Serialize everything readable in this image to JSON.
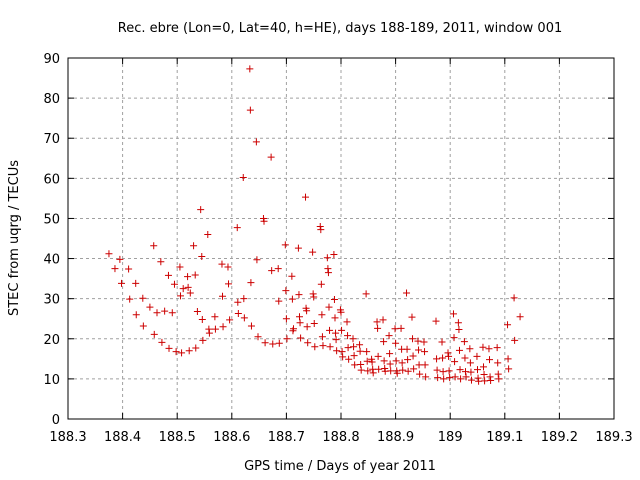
{
  "chart_data": {
    "type": "scatter",
    "title": "Rec. ebre (Lon=0, Lat=40, h=HE), days 188-189, 2011, window 001",
    "xlabel": "GPS time / Days of year 2011",
    "ylabel": "STEC from uqrg / TECUs",
    "xlim": [
      188.3,
      189.3
    ],
    "ylim": [
      0,
      90
    ],
    "xticks": [
      "188.3",
      "188.4",
      "188.5",
      "188.6",
      "188.7",
      "188.8",
      "188.9",
      "189",
      "189.1",
      "189.2",
      "189.3"
    ],
    "yticks": [
      "0",
      "10",
      "20",
      "30",
      "40",
      "50",
      "60",
      "70",
      "80",
      "90"
    ],
    "grid": true,
    "marker": "+",
    "marker_color": "#cc0000",
    "points": [
      [
        188.375,
        41.2
      ],
      [
        188.386,
        37.5
      ],
      [
        188.395,
        39.8
      ],
      [
        188.398,
        33.8
      ],
      [
        188.411,
        37.4
      ],
      [
        188.413,
        29.9
      ],
      [
        188.424,
        33.8
      ],
      [
        188.425,
        26.0
      ],
      [
        188.437,
        30.1
      ],
      [
        188.438,
        23.2
      ],
      [
        188.45,
        27.9
      ],
      [
        188.457,
        43.2
      ],
      [
        188.458,
        21.1
      ],
      [
        188.463,
        26.5
      ],
      [
        188.47,
        39.2
      ],
      [
        188.472,
        19.1
      ],
      [
        188.477,
        26.9
      ],
      [
        188.484,
        35.8
      ],
      [
        188.485,
        17.6
      ],
      [
        188.491,
        26.5
      ],
      [
        188.495,
        33.6
      ],
      [
        188.498,
        16.8
      ],
      [
        188.505,
        37.9
      ],
      [
        188.506,
        30.7
      ],
      [
        188.508,
        16.5
      ],
      [
        188.511,
        32.5
      ],
      [
        188.519,
        35.5
      ],
      [
        188.52,
        32.8
      ],
      [
        188.522,
        17.0
      ],
      [
        188.524,
        31.4
      ],
      [
        188.53,
        43.2
      ],
      [
        188.533,
        35.9
      ],
      [
        188.534,
        17.7
      ],
      [
        188.537,
        26.8
      ],
      [
        188.543,
        52.2
      ],
      [
        188.545,
        40.5
      ],
      [
        188.546,
        24.8
      ],
      [
        188.547,
        19.6
      ],
      [
        188.556,
        46.0
      ],
      [
        188.558,
        22.4
      ],
      [
        188.559,
        21.4
      ],
      [
        188.569,
        25.5
      ],
      [
        188.57,
        22.4
      ],
      [
        188.582,
        38.6
      ],
      [
        188.583,
        30.6
      ],
      [
        188.584,
        23.0
      ],
      [
        188.593,
        37.9
      ],
      [
        188.594,
        33.7
      ],
      [
        188.596,
        24.7
      ],
      [
        188.61,
        47.7
      ],
      [
        188.611,
        29.1
      ],
      [
        188.612,
        26.3
      ],
      [
        188.621,
        60.2
      ],
      [
        188.622,
        30.0
      ],
      [
        188.623,
        25.2
      ],
      [
        188.633,
        87.3
      ],
      [
        188.634,
        77.0
      ],
      [
        188.635,
        34.0
      ],
      [
        188.636,
        23.2
      ],
      [
        188.645,
        69.1
      ],
      [
        188.646,
        39.7
      ],
      [
        188.648,
        20.5
      ],
      [
        188.658,
        50.0
      ],
      [
        188.659,
        49.3
      ],
      [
        188.661,
        19.0
      ],
      [
        188.672,
        65.3
      ],
      [
        188.673,
        37.0
      ],
      [
        188.675,
        18.7
      ],
      [
        188.685,
        37.5
      ],
      [
        188.686,
        29.4
      ],
      [
        188.687,
        18.9
      ],
      [
        188.698,
        43.4
      ],
      [
        188.699,
        32.0
      ],
      [
        188.7,
        25.0
      ],
      [
        188.701,
        20.0
      ],
      [
        188.71,
        35.6
      ],
      [
        188.711,
        29.9
      ],
      [
        188.712,
        22.0
      ],
      [
        188.713,
        22.5
      ],
      [
        188.722,
        42.6
      ],
      [
        188.723,
        31.0
      ],
      [
        188.724,
        25.5
      ],
      [
        188.725,
        24.0
      ],
      [
        188.726,
        20.2
      ],
      [
        188.735,
        55.3
      ],
      [
        188.736,
        27.6
      ],
      [
        188.737,
        27.0
      ],
      [
        188.738,
        23.0
      ],
      [
        188.739,
        19.0
      ],
      [
        188.748,
        41.6
      ],
      [
        188.749,
        31.2
      ],
      [
        188.75,
        30.4
      ],
      [
        188.751,
        23.8
      ],
      [
        188.752,
        18.0
      ],
      [
        188.762,
        48.0
      ],
      [
        188.763,
        47.2
      ],
      [
        188.764,
        33.6
      ],
      [
        188.765,
        26.0
      ],
      [
        188.766,
        20.5
      ],
      [
        188.767,
        18.3
      ],
      [
        188.775,
        40.2
      ],
      [
        188.776,
        37.5
      ],
      [
        188.777,
        36.5
      ],
      [
        188.778,
        27.9
      ],
      [
        188.779,
        22.1
      ],
      [
        188.78,
        18.0
      ],
      [
        188.787,
        41.0
      ],
      [
        188.788,
        29.8
      ],
      [
        188.789,
        25.2
      ],
      [
        188.79,
        21.4
      ],
      [
        188.791,
        19.8
      ],
      [
        188.792,
        17.0
      ],
      [
        188.799,
        27.2
      ],
      [
        188.8,
        26.6
      ],
      [
        188.801,
        22.1
      ],
      [
        188.802,
        16.8
      ],
      [
        188.803,
        15.5
      ],
      [
        188.811,
        24.2
      ],
      [
        188.812,
        20.8
      ],
      [
        188.813,
        17.8
      ],
      [
        188.814,
        14.9
      ],
      [
        188.822,
        20.0
      ],
      [
        188.823,
        18.0
      ],
      [
        188.824,
        15.8
      ],
      [
        188.825,
        13.5
      ],
      [
        188.834,
        18.5
      ],
      [
        188.835,
        16.9
      ],
      [
        188.836,
        13.6
      ],
      [
        188.837,
        12.2
      ],
      [
        188.846,
        31.2
      ],
      [
        188.847,
        16.8
      ],
      [
        188.848,
        14.4
      ],
      [
        188.849,
        12.0
      ],
      [
        188.856,
        14.9
      ],
      [
        188.857,
        14.2
      ],
      [
        188.858,
        12.4
      ],
      [
        188.859,
        11.5
      ],
      [
        188.866,
        24.2
      ],
      [
        188.867,
        22.6
      ],
      [
        188.868,
        15.6
      ],
      [
        188.869,
        12.4
      ],
      [
        188.877,
        24.7
      ],
      [
        188.878,
        19.3
      ],
      [
        188.879,
        14.5
      ],
      [
        188.88,
        12.6
      ],
      [
        188.881,
        11.9
      ],
      [
        188.888,
        20.8
      ],
      [
        188.889,
        16.3
      ],
      [
        188.89,
        13.7
      ],
      [
        188.891,
        12.0
      ],
      [
        188.899,
        22.5
      ],
      [
        188.9,
        18.9
      ],
      [
        188.901,
        14.5
      ],
      [
        188.902,
        12.0
      ],
      [
        188.903,
        11.4
      ],
      [
        188.91,
        22.6
      ],
      [
        188.911,
        17.4
      ],
      [
        188.912,
        14.0
      ],
      [
        188.913,
        12.2
      ],
      [
        188.92,
        31.4
      ],
      [
        188.921,
        17.4
      ],
      [
        188.922,
        14.8
      ],
      [
        188.923,
        11.9
      ],
      [
        188.93,
        25.4
      ],
      [
        188.931,
        20.0
      ],
      [
        188.932,
        15.7
      ],
      [
        188.933,
        12.5
      ],
      [
        188.941,
        19.4
      ],
      [
        188.942,
        17.2
      ],
      [
        188.943,
        13.5
      ],
      [
        188.944,
        11.2
      ],
      [
        188.952,
        19.2
      ],
      [
        188.953,
        16.8
      ],
      [
        188.954,
        13.5
      ],
      [
        188.955,
        10.5
      ],
      [
        188.974,
        24.4
      ],
      [
        188.975,
        15.0
      ],
      [
        188.976,
        12.2
      ],
      [
        188.977,
        10.3
      ],
      [
        188.985,
        19.2
      ],
      [
        188.986,
        15.2
      ],
      [
        188.987,
        11.8
      ],
      [
        188.988,
        10.0
      ],
      [
        188.996,
        16.5
      ],
      [
        188.997,
        15.6
      ],
      [
        188.998,
        12.0
      ],
      [
        188.999,
        10.3
      ],
      [
        189.006,
        26.2
      ],
      [
        189.007,
        20.3
      ],
      [
        189.008,
        14.3
      ],
      [
        189.009,
        10.5
      ],
      [
        189.015,
        24.0
      ],
      [
        189.016,
        22.3
      ],
      [
        189.017,
        17.1
      ],
      [
        189.018,
        12.3
      ],
      [
        189.019,
        10.0
      ],
      [
        189.026,
        19.3
      ],
      [
        189.027,
        15.2
      ],
      [
        189.028,
        11.8
      ],
      [
        189.029,
        10.5
      ],
      [
        189.036,
        17.5
      ],
      [
        189.037,
        14.0
      ],
      [
        189.038,
        11.7
      ],
      [
        189.039,
        9.7
      ],
      [
        189.049,
        15.6
      ],
      [
        189.05,
        12.3
      ],
      [
        189.051,
        10.2
      ],
      [
        189.052,
        9.4
      ],
      [
        189.06,
        17.9
      ],
      [
        189.061,
        13.0
      ],
      [
        189.062,
        11.1
      ],
      [
        189.063,
        9.5
      ],
      [
        189.071,
        17.5
      ],
      [
        189.072,
        14.8
      ],
      [
        189.073,
        10.5
      ],
      [
        189.074,
        9.6
      ],
      [
        189.086,
        17.8
      ],
      [
        189.087,
        14.0
      ],
      [
        189.088,
        11.2
      ],
      [
        189.089,
        10.0
      ],
      [
        189.105,
        23.5
      ],
      [
        189.106,
        15.0
      ],
      [
        189.107,
        12.5
      ],
      [
        189.117,
        30.2
      ],
      [
        189.118,
        19.6
      ],
      [
        189.128,
        25.5
      ]
    ]
  }
}
